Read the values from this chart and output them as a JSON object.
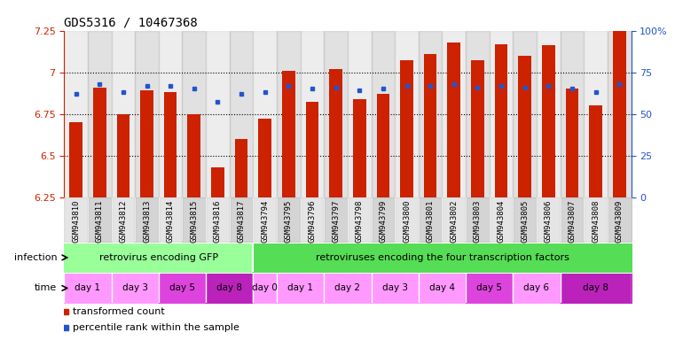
{
  "title": "GDS5316 / 10467368",
  "samples": [
    "GSM943810",
    "GSM943811",
    "GSM943812",
    "GSM943813",
    "GSM943814",
    "GSM943815",
    "GSM943816",
    "GSM943817",
    "GSM943794",
    "GSM943795",
    "GSM943796",
    "GSM943797",
    "GSM943798",
    "GSM943799",
    "GSM943800",
    "GSM943801",
    "GSM943802",
    "GSM943803",
    "GSM943804",
    "GSM943805",
    "GSM943806",
    "GSM943807",
    "GSM943808",
    "GSM943809"
  ],
  "bar_heights": [
    6.7,
    6.91,
    6.75,
    6.89,
    6.88,
    6.75,
    6.43,
    6.6,
    6.72,
    7.01,
    6.82,
    7.02,
    6.84,
    6.87,
    7.07,
    7.11,
    7.18,
    7.07,
    7.17,
    7.1,
    7.16,
    6.9,
    6.8,
    7.25
  ],
  "percentile_values": [
    62,
    68,
    63,
    67,
    67,
    65,
    57,
    62,
    63,
    67,
    65,
    66,
    64,
    65,
    67,
    67,
    68,
    66,
    67,
    66,
    67,
    65,
    63,
    68
  ],
  "ymin": 6.25,
  "ymax": 7.25,
  "yticks": [
    6.25,
    6.5,
    6.75,
    7.0,
    7.25
  ],
  "ytick_labels": [
    "6.25",
    "6.5",
    "6.75",
    "7",
    "7.25"
  ],
  "right_yticks": [
    0,
    25,
    50,
    75,
    100
  ],
  "right_ytick_labels": [
    "0",
    "25",
    "50",
    "75",
    "100%"
  ],
  "bar_color": "#cc2200",
  "dot_color": "#2255cc",
  "tick_bg_even": "#cccccc",
  "tick_bg_odd": "#aaaaaa",
  "infection_color_1": "#99ff99",
  "infection_color_2": "#55dd55",
  "time_color_light": "#ff99ff",
  "time_color_day5": "#dd44dd",
  "time_color_day8": "#bb22bb",
  "infection_label_1": "retrovirus encoding GFP",
  "infection_label_2": "retroviruses encoding the four transcription factors",
  "time_groups": [
    {
      "label": "day 1",
      "start": 0,
      "end": 2,
      "shade": "light"
    },
    {
      "label": "day 3",
      "start": 2,
      "end": 4,
      "shade": "light"
    },
    {
      "label": "day 5",
      "start": 4,
      "end": 6,
      "shade": "day5"
    },
    {
      "label": "day 8",
      "start": 6,
      "end": 8,
      "shade": "day8"
    },
    {
      "label": "day 0",
      "start": 8,
      "end": 9,
      "shade": "light"
    },
    {
      "label": "day 1",
      "start": 9,
      "end": 11,
      "shade": "light"
    },
    {
      "label": "day 2",
      "start": 11,
      "end": 13,
      "shade": "light"
    },
    {
      "label": "day 3",
      "start": 13,
      "end": 15,
      "shade": "light"
    },
    {
      "label": "day 4",
      "start": 15,
      "end": 17,
      "shade": "light"
    },
    {
      "label": "day 5",
      "start": 17,
      "end": 19,
      "shade": "day5"
    },
    {
      "label": "day 6",
      "start": 19,
      "end": 21,
      "shade": "light"
    },
    {
      "label": "day 8",
      "start": 21,
      "end": 24,
      "shade": "day8"
    }
  ],
  "legend_items": [
    {
      "label": "transformed count",
      "color": "#cc2200"
    },
    {
      "label": "percentile rank within the sample",
      "color": "#2255cc"
    }
  ]
}
